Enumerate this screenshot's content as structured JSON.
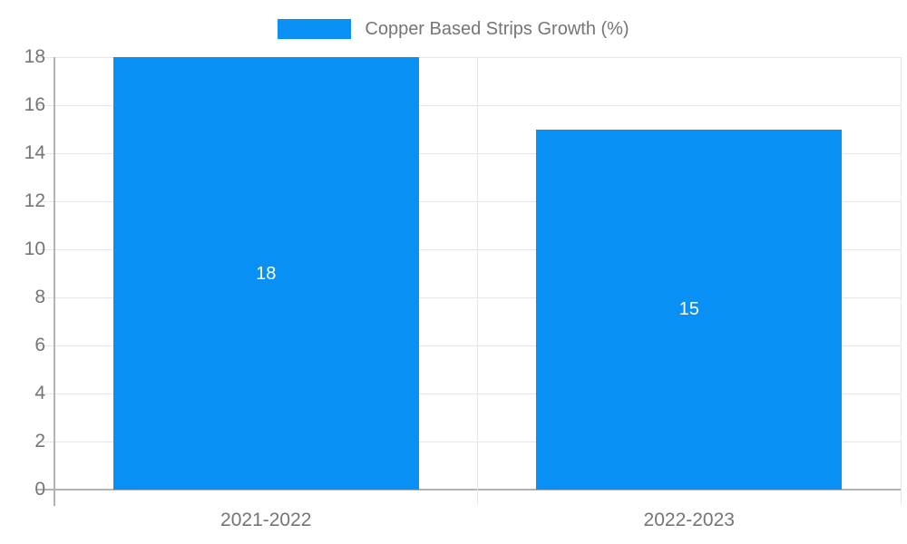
{
  "legend": {
    "label": "Copper Based Strips Growth (%)"
  },
  "chart_data": {
    "type": "bar",
    "title": "Copper Based Strips Growth (%)",
    "categories": [
      "2021-2022",
      "2022-2023"
    ],
    "values": [
      18,
      15
    ],
    "value_labels": [
      "18",
      "15"
    ],
    "series": [
      {
        "name": "Copper Based Strips Growth (%)",
        "values": [
          18,
          15
        ]
      }
    ],
    "xlabel": "",
    "ylabel": "",
    "ylim": [
      0,
      18
    ],
    "ytick_step": 2,
    "ytick_labels": [
      "0",
      "2",
      "4",
      "6",
      "8",
      "10",
      "12",
      "14",
      "16",
      "18"
    ],
    "grid": true,
    "legend_position": "top-center",
    "colors": {
      "bar": "#0990f5",
      "gridline": "#e6e6e6",
      "axis": "#b3b3b3",
      "tick_text": "#757575",
      "value_label_text": "#ffffff",
      "background": "#ffffff"
    }
  }
}
